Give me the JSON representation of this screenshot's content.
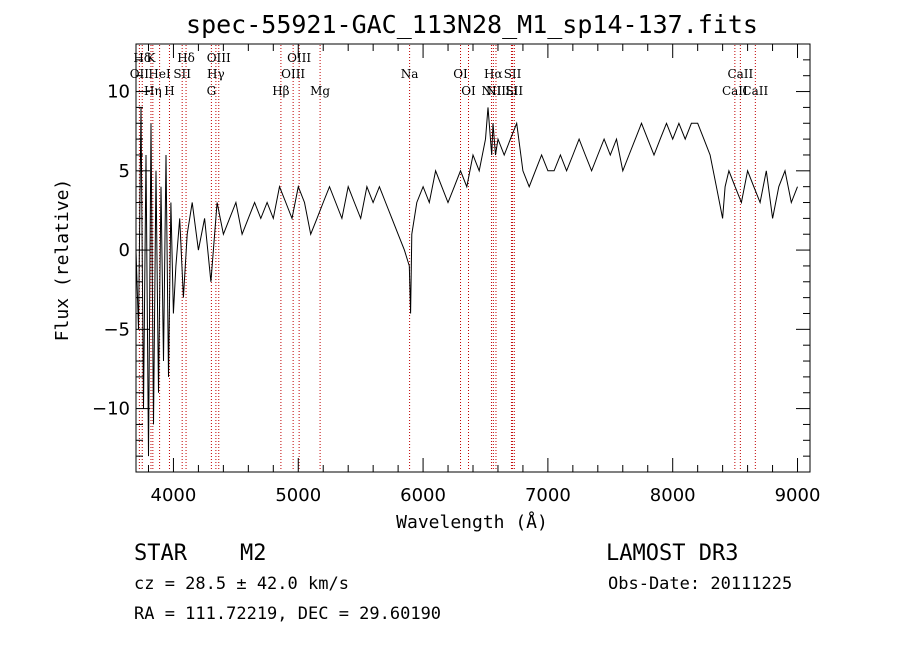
{
  "chart_data": {
    "type": "line",
    "title": "spec-55921-GAC_113N28_M1_sp14-137.fits",
    "xlabel": "Wavelength (Å)",
    "ylabel": "Flux (relative)",
    "xlim": [
      3700,
      9100
    ],
    "ylim": [
      -14,
      13
    ],
    "x_ticks": [
      {
        "value": 4000,
        "label": "4000"
      },
      {
        "value": 5000,
        "label": "5000"
      },
      {
        "value": 6000,
        "label": "6000"
      },
      {
        "value": 7000,
        "label": "7000"
      },
      {
        "value": 8000,
        "label": "8000"
      },
      {
        "value": 9000,
        "label": "9000"
      }
    ],
    "y_ticks": [
      {
        "value": 10,
        "label": "10"
      },
      {
        "value": 5,
        "label": "5"
      },
      {
        "value": 0,
        "label": "0"
      },
      {
        "value": -5,
        "label": "−5"
      },
      {
        "value": -10,
        "label": "−10"
      }
    ],
    "series": [
      {
        "name": "spectrum",
        "x": [
          3700,
          3720,
          3740,
          3760,
          3780,
          3800,
          3820,
          3840,
          3860,
          3880,
          3900,
          3920,
          3940,
          3960,
          3980,
          4000,
          4020,
          4050,
          4080,
          4110,
          4150,
          4200,
          4250,
          4300,
          4350,
          4400,
          4450,
          4500,
          4550,
          4600,
          4650,
          4700,
          4750,
          4800,
          4850,
          4900,
          4950,
          5000,
          5050,
          5100,
          5150,
          5200,
          5250,
          5300,
          5350,
          5400,
          5450,
          5500,
          5550,
          5600,
          5650,
          5700,
          5750,
          5800,
          5850,
          5890,
          5900,
          5910,
          5950,
          6000,
          6050,
          6100,
          6150,
          6200,
          6250,
          6300,
          6350,
          6400,
          6450,
          6500,
          6520,
          6550,
          6560,
          6580,
          6600,
          6650,
          6700,
          6750,
          6800,
          6850,
          6900,
          6950,
          7000,
          7050,
          7100,
          7150,
          7200,
          7250,
          7300,
          7350,
          7400,
          7450,
          7500,
          7550,
          7600,
          7650,
          7700,
          7750,
          7800,
          7850,
          7900,
          7950,
          8000,
          8050,
          8100,
          8150,
          8200,
          8250,
          8300,
          8350,
          8400,
          8420,
          8450,
          8500,
          8550,
          8600,
          8650,
          8700,
          8750,
          8800,
          8850,
          8900,
          8950,
          9000
        ],
        "y": [
          0,
          -5,
          9,
          -10,
          6,
          -13,
          8,
          -11,
          5,
          -9,
          4,
          -7,
          6,
          -8,
          3,
          -4,
          -1,
          2,
          -3,
          1,
          3,
          0,
          2,
          -2,
          3,
          1,
          2,
          3,
          1,
          2,
          3,
          2,
          3,
          2,
          4,
          3,
          2,
          4,
          3,
          1,
          2,
          3,
          4,
          3,
          2,
          4,
          3,
          2,
          4,
          3,
          4,
          3,
          2,
          1,
          0,
          -1,
          -4,
          1,
          3,
          4,
          3,
          5,
          4,
          3,
          4,
          5,
          4,
          6,
          5,
          7,
          9,
          6,
          8,
          6,
          7,
          6,
          7,
          8,
          5,
          4,
          5,
          6,
          5,
          5,
          6,
          5,
          6,
          7,
          6,
          5,
          6,
          7,
          6,
          7,
          5,
          6,
          7,
          8,
          7,
          6,
          7,
          8,
          7,
          8,
          7,
          8,
          8,
          7,
          6,
          4,
          2,
          4,
          5,
          4,
          3,
          5,
          4,
          3,
          5,
          2,
          4,
          5,
          3,
          4
        ]
      }
    ],
    "line_markers": [
      {
        "label": "Hδ",
        "x": 3750
      },
      {
        "label": "K",
        "x": 3820
      },
      {
        "label": "Hδ",
        "x": 4101
      },
      {
        "label": "OIII",
        "x": 4363
      },
      {
        "label": "OIII",
        "x": 5007
      },
      {
        "label": "OII",
        "x": 3727
      },
      {
        "label": "HeI",
        "x": 3889
      },
      {
        "label": "SII",
        "x": 4070
      },
      {
        "label": "Hγ",
        "x": 4340
      },
      {
        "label": "OIII",
        "x": 4959
      },
      {
        "label": "Na",
        "x": 5892
      },
      {
        "label": "OI",
        "x": 6300
      },
      {
        "label": "Hα",
        "x": 6563
      },
      {
        "label": "SII",
        "x": 6717
      },
      {
        "label": "CaII",
        "x": 8542
      },
      {
        "label": "Hη",
        "x": 3835
      },
      {
        "label": "H",
        "x": 3968
      },
      {
        "label": "G",
        "x": 4304
      },
      {
        "label": "Hβ",
        "x": 4861
      },
      {
        "label": "Mg",
        "x": 5175
      },
      {
        "label": "OI",
        "x": 6364
      },
      {
        "label": "NII",
        "x": 6548
      },
      {
        "label": "Li",
        "x": 6708
      },
      {
        "label": "NII",
        "x": 6584
      },
      {
        "label": "SII",
        "x": 6731
      },
      {
        "label": "CaII",
        "x": 8498
      },
      {
        "label": "CaII",
        "x": 8662
      }
    ]
  },
  "info": {
    "object_class": "STAR",
    "subclass": "M2",
    "survey": "LAMOST DR3",
    "cz": "cz = 28.5 ± 42.0 km/s",
    "obs_date": "Obs-Date: 20111225",
    "coords": "RA = 111.72219, DEC =  29.60190"
  }
}
